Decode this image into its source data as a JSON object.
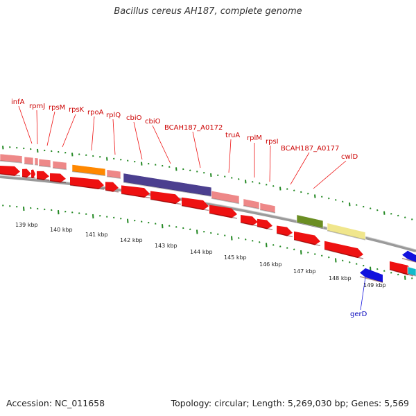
{
  "title": "Bacillus cereus AH187, complete genome",
  "accession": "Accession: NC_011658",
  "topology": "Topology: circular; Length: 5,269,030 bp; Genes: 5,569",
  "colors": {
    "cds": "#ee1111",
    "cds_dark": "#aa0000",
    "rrna_like": "#ee8888",
    "orange": "#ff8800",
    "purple": "#4b3f8f",
    "olive": "#6b8e23",
    "khaki": "#f0e68c",
    "blue": "#1111dd",
    "cyan": "#11bbcc",
    "backbone": "#888888",
    "tick": "#228822"
  },
  "kbp_labels": [
    "139 kbp",
    "140 kbp",
    "141 kbp",
    "142 kbp",
    "143 kbp",
    "144 kbp",
    "145 kbp",
    "146 kbp",
    "147 kbp",
    "148 kbp",
    "149 kbp"
  ],
  "gene_labels": [
    {
      "name": "infA",
      "color": "red"
    },
    {
      "name": "rpmJ",
      "color": "red"
    },
    {
      "name": "rpsM",
      "color": "red"
    },
    {
      "name": "rpsK",
      "color": "red"
    },
    {
      "name": "rpoA",
      "color": "red"
    },
    {
      "name": "rplQ",
      "color": "red"
    },
    {
      "name": "cbiO",
      "color": "red"
    },
    {
      "name": "cbiO",
      "color": "red"
    },
    {
      "name": "BCAH187_A0172",
      "color": "red"
    },
    {
      "name": "truA",
      "color": "red"
    },
    {
      "name": "rplM",
      "color": "red"
    },
    {
      "name": "rpsI",
      "color": "red"
    },
    {
      "name": "BCAH187_A0177",
      "color": "red"
    },
    {
      "name": "cwlD",
      "color": "red"
    },
    {
      "name": "gerD",
      "color": "blue"
    }
  ]
}
